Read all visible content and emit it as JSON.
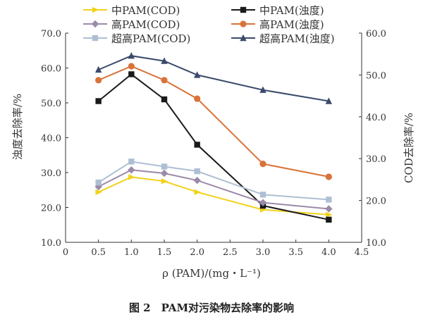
{
  "chart_data": {
    "type": "line",
    "caption": "图 2　PAM对污染物去除率的影响",
    "xlabel": "ρ (PAM)/(mg・L⁻¹)",
    "ylabel_left": "浊度去除率/%",
    "ylabel_right": "COD去除率/%",
    "xlim": [
      0,
      4.5
    ],
    "xticks": [
      "0",
      "0.5",
      "1.0",
      "1.5",
      "2.0",
      "2.5",
      "3.0",
      "3.5",
      "4.0",
      "4.5"
    ],
    "ylim_left": [
      10,
      70
    ],
    "yticks_left": [
      "10.0",
      "20.0",
      "30.0",
      "40.0",
      "50.0",
      "60.0",
      "70.0"
    ],
    "ylim_right": [
      10,
      60
    ],
    "yticks_right": [
      "10.0",
      "20.0",
      "30.0",
      "40.0",
      "50.0",
      "60.0"
    ],
    "grid": false,
    "legend_position": "top",
    "x": [
      0.5,
      1.0,
      1.5,
      2.0,
      3.0,
      4.0
    ],
    "series": [
      {
        "name": "中PAM(COD)",
        "axis": "right",
        "color": "#f2d21a",
        "marker": "triangle-right",
        "values": [
          22.0,
          25.6,
          24.6,
          22.0,
          17.8,
          16.6
        ]
      },
      {
        "name": "中PAM(浊度)",
        "axis": "left",
        "color": "#1a1a1a",
        "marker": "square",
        "values": [
          50.5,
          58.2,
          51.0,
          38.0,
          20.5,
          16.5
        ]
      },
      {
        "name": "高PAM(COD)",
        "axis": "right",
        "color": "#9c8aaa",
        "marker": "diamond",
        "values": [
          23.3,
          27.3,
          26.5,
          24.8,
          19.5,
          18.0
        ]
      },
      {
        "name": "高PAM(浊度)",
        "axis": "left",
        "color": "#d9733a",
        "marker": "circle",
        "values": [
          56.5,
          60.5,
          56.5,
          51.2,
          32.5,
          28.8
        ]
      },
      {
        "name": "超高PAM(COD)",
        "axis": "right",
        "color": "#aebfd4",
        "marker": "square",
        "values": [
          24.3,
          29.3,
          28.1,
          27.0,
          21.4,
          20.2
        ]
      },
      {
        "name": "超高PAM(浊度)",
        "axis": "left",
        "color": "#3b4a6b",
        "marker": "triangle-up",
        "values": [
          59.5,
          63.5,
          62.0,
          58.0,
          53.7,
          50.5
        ]
      }
    ]
  }
}
